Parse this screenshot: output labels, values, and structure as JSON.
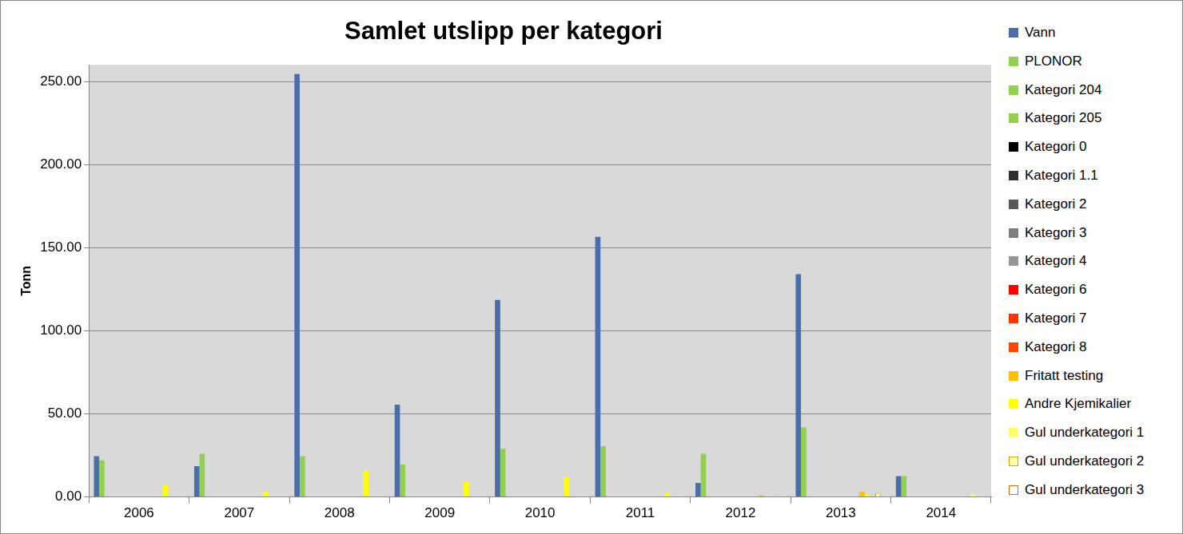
{
  "chart_data": {
    "type": "bar",
    "title": "Samlet utslipp per kategori",
    "y_label": "Tonn",
    "categories": [
      "2006",
      "2007",
      "2008",
      "2009",
      "2010",
      "2011",
      "2012",
      "2013",
      "2014"
    ],
    "series": [
      {
        "name": "Vann",
        "color": "#4a6ea9",
        "values": [
          24.5,
          18.5,
          254.5,
          55.5,
          118.5,
          156.5,
          8.5,
          134,
          12.5
        ]
      },
      {
        "name": "PLONOR",
        "color": "#92d050",
        "values": [
          22,
          26,
          24.5,
          19.5,
          29,
          30.5,
          26,
          42,
          12.5
        ]
      },
      {
        "name": "Kategori 204",
        "color": "#92d050",
        "values": [
          0,
          0,
          0,
          0,
          0,
          0,
          0,
          0,
          0
        ]
      },
      {
        "name": "Kategori 205",
        "color": "#92d050",
        "values": [
          0,
          0,
          0,
          0,
          0,
          0,
          0,
          0,
          0
        ]
      },
      {
        "name": "Kategori 0",
        "color": "#000000",
        "values": [
          0,
          0,
          0,
          0,
          0,
          0,
          0,
          0,
          0
        ]
      },
      {
        "name": "Kategori 1.1",
        "color": "#303030",
        "values": [
          0,
          0,
          0,
          0,
          0,
          0,
          0,
          0,
          0
        ]
      },
      {
        "name": "Kategori 2",
        "color": "#595959",
        "values": [
          0,
          0,
          0,
          0,
          0,
          0,
          0,
          0,
          0
        ]
      },
      {
        "name": "Kategori 3",
        "color": "#808080",
        "values": [
          0,
          0,
          0,
          0,
          0,
          0,
          0,
          0,
          0
        ]
      },
      {
        "name": "Kategori 4",
        "color": "#969696",
        "values": [
          0,
          0,
          0,
          0,
          0,
          0,
          0,
          0,
          0
        ]
      },
      {
        "name": "Kategori 6",
        "color": "#ff0000",
        "values": [
          0,
          0,
          0,
          0,
          0,
          0,
          0,
          0,
          0
        ]
      },
      {
        "name": "Kategori 7",
        "color": "#ff3300",
        "values": [
          0,
          0,
          0,
          0,
          0,
          0,
          0,
          0,
          0
        ]
      },
      {
        "name": "Kategori 8",
        "color": "#ff4500",
        "values": [
          0,
          0,
          0,
          0,
          0,
          0,
          0,
          0,
          0
        ]
      },
      {
        "name": "Fritatt testing",
        "color": "#ffc000",
        "values": [
          0,
          0,
          0,
          0,
          0,
          0,
          1,
          3,
          0
        ]
      },
      {
        "name": "Andre Kjemikalier",
        "color": "#ffff00",
        "values": [
          7,
          3,
          16,
          9,
          12,
          2.5,
          0,
          1.5,
          0
        ]
      },
      {
        "name": "Gul underkategori 1",
        "color": "#ffff66",
        "values": [
          0,
          0,
          0,
          0,
          0,
          0,
          0.5,
          0,
          1.5
        ]
      },
      {
        "name": "Gul underkategori 2",
        "color": "#ffffaa",
        "values": [
          0,
          0,
          0,
          0,
          0,
          0,
          0,
          2.5,
          0
        ]
      },
      {
        "name": "Gul underkategori 3",
        "color": "#ffffff",
        "values": [
          0,
          0,
          0,
          0,
          0,
          0,
          0,
          0,
          0
        ]
      }
    ],
    "ylim": [
      0,
      260
    ],
    "yticks": [
      {
        "value": 0,
        "label": "0.00"
      },
      {
        "value": 50,
        "label": "50.00"
      },
      {
        "value": 100,
        "label": "100.00"
      },
      {
        "value": 150,
        "label": "150.00"
      },
      {
        "value": 200,
        "label": "200.00"
      },
      {
        "value": 250,
        "label": "250.00"
      }
    ],
    "grid": true,
    "legend": "right"
  }
}
